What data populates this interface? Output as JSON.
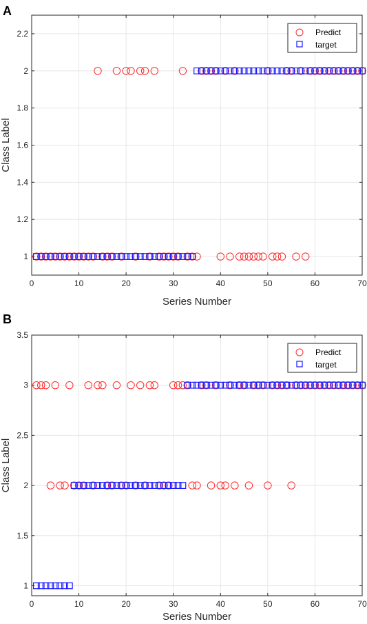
{
  "colors": {
    "predict": "#ff2a2a",
    "target": "#1a1aff",
    "grid": "#e6e6e6",
    "axis": "#262626"
  },
  "chart_data": [
    {
      "type": "scatter",
      "panel_label": "A",
      "xlabel": "Series Number",
      "ylabel": "Class Label",
      "xlim": [
        0,
        70
      ],
      "ylim": [
        0.9,
        2.3
      ],
      "xticks": [
        0,
        10,
        20,
        30,
        40,
        50,
        60,
        70
      ],
      "yticks": [
        1,
        1.2,
        1.4,
        1.6,
        1.8,
        2,
        2.2
      ],
      "ytick_labels": [
        "1",
        "1.2",
        "1.4",
        "1.6",
        "1.8",
        "2",
        "2.2"
      ],
      "grid": true,
      "legend": "top-right",
      "series": [
        {
          "name": "Predict",
          "marker": "circle",
          "points": [
            [
              1,
              1
            ],
            [
              2,
              1
            ],
            [
              3,
              1
            ],
            [
              4,
              1
            ],
            [
              5,
              1
            ],
            [
              6,
              1
            ],
            [
              7,
              1
            ],
            [
              8,
              1
            ],
            [
              9,
              1
            ],
            [
              10,
              1
            ],
            [
              11,
              1
            ],
            [
              12,
              1
            ],
            [
              13,
              1
            ],
            [
              14,
              2
            ],
            [
              15,
              1
            ],
            [
              16,
              1
            ],
            [
              17,
              1
            ],
            [
              18,
              2
            ],
            [
              19,
              1
            ],
            [
              20,
              2
            ],
            [
              21,
              2
            ],
            [
              22,
              1
            ],
            [
              23,
              2
            ],
            [
              24,
              2
            ],
            [
              25,
              1
            ],
            [
              26,
              2
            ],
            [
              27,
              1
            ],
            [
              28,
              1
            ],
            [
              29,
              1
            ],
            [
              30,
              1
            ],
            [
              31,
              1
            ],
            [
              32,
              2
            ],
            [
              33,
              1
            ],
            [
              34,
              1
            ],
            [
              35,
              1
            ],
            [
              36,
              2
            ],
            [
              37,
              2
            ],
            [
              38,
              2
            ],
            [
              39,
              2
            ],
            [
              40,
              1
            ],
            [
              41,
              2
            ],
            [
              42,
              1
            ],
            [
              43,
              2
            ],
            [
              44,
              1
            ],
            [
              45,
              1
            ],
            [
              46,
              1
            ],
            [
              47,
              1
            ],
            [
              48,
              1
            ],
            [
              49,
              1
            ],
            [
              50,
              2
            ],
            [
              51,
              1
            ],
            [
              52,
              1
            ],
            [
              53,
              1
            ],
            [
              54,
              2
            ],
            [
              55,
              2
            ],
            [
              56,
              1
            ],
            [
              57,
              2
            ],
            [
              58,
              1
            ],
            [
              59,
              2
            ],
            [
              60,
              2
            ],
            [
              61,
              2
            ],
            [
              62,
              2
            ],
            [
              63,
              2
            ],
            [
              64,
              2
            ],
            [
              65,
              2
            ],
            [
              66,
              2
            ],
            [
              67,
              2
            ],
            [
              68,
              2
            ],
            [
              69,
              2
            ],
            [
              70,
              2
            ]
          ]
        },
        {
          "name": "target",
          "marker": "square",
          "points": [
            [
              1,
              1
            ],
            [
              2,
              1
            ],
            [
              3,
              1
            ],
            [
              4,
              1
            ],
            [
              5,
              1
            ],
            [
              6,
              1
            ],
            [
              7,
              1
            ],
            [
              8,
              1
            ],
            [
              9,
              1
            ],
            [
              10,
              1
            ],
            [
              11,
              1
            ],
            [
              12,
              1
            ],
            [
              13,
              1
            ],
            [
              14,
              1
            ],
            [
              15,
              1
            ],
            [
              16,
              1
            ],
            [
              17,
              1
            ],
            [
              18,
              1
            ],
            [
              19,
              1
            ],
            [
              20,
              1
            ],
            [
              21,
              1
            ],
            [
              22,
              1
            ],
            [
              23,
              1
            ],
            [
              24,
              1
            ],
            [
              25,
              1
            ],
            [
              26,
              1
            ],
            [
              27,
              1
            ],
            [
              28,
              1
            ],
            [
              29,
              1
            ],
            [
              30,
              1
            ],
            [
              31,
              1
            ],
            [
              32,
              1
            ],
            [
              33,
              1
            ],
            [
              34,
              1
            ],
            [
              35,
              2
            ],
            [
              36,
              2
            ],
            [
              37,
              2
            ],
            [
              38,
              2
            ],
            [
              39,
              2
            ],
            [
              40,
              2
            ],
            [
              41,
              2
            ],
            [
              42,
              2
            ],
            [
              43,
              2
            ],
            [
              44,
              2
            ],
            [
              45,
              2
            ],
            [
              46,
              2
            ],
            [
              47,
              2
            ],
            [
              48,
              2
            ],
            [
              49,
              2
            ],
            [
              50,
              2
            ],
            [
              51,
              2
            ],
            [
              52,
              2
            ],
            [
              53,
              2
            ],
            [
              54,
              2
            ],
            [
              55,
              2
            ],
            [
              56,
              2
            ],
            [
              57,
              2
            ],
            [
              58,
              2
            ],
            [
              59,
              2
            ],
            [
              60,
              2
            ],
            [
              61,
              2
            ],
            [
              62,
              2
            ],
            [
              63,
              2
            ],
            [
              64,
              2
            ],
            [
              65,
              2
            ],
            [
              66,
              2
            ],
            [
              67,
              2
            ],
            [
              68,
              2
            ],
            [
              69,
              2
            ],
            [
              70,
              2
            ]
          ]
        }
      ]
    },
    {
      "type": "scatter",
      "panel_label": "B",
      "xlabel": "Series Number",
      "ylabel": "Class Label",
      "xlim": [
        0,
        70
      ],
      "ylim": [
        0.9,
        3.5
      ],
      "xticks": [
        0,
        10,
        20,
        30,
        40,
        50,
        60,
        70
      ],
      "yticks": [
        1,
        1.5,
        2,
        2.5,
        3,
        3.5
      ],
      "ytick_labels": [
        "1",
        "1.5",
        "2",
        "2.5",
        "3",
        "3.5"
      ],
      "grid": true,
      "legend": "top-right",
      "series": [
        {
          "name": "Predict",
          "marker": "circle",
          "points": [
            [
              1,
              3
            ],
            [
              2,
              3
            ],
            [
              3,
              3
            ],
            [
              4,
              2
            ],
            [
              5,
              3
            ],
            [
              6,
              2
            ],
            [
              7,
              2
            ],
            [
              8,
              3
            ],
            [
              9,
              2
            ],
            [
              10,
              2
            ],
            [
              11,
              2
            ],
            [
              12,
              3
            ],
            [
              13,
              2
            ],
            [
              14,
              3
            ],
            [
              15,
              3
            ],
            [
              16,
              2
            ],
            [
              17,
              2
            ],
            [
              18,
              3
            ],
            [
              19,
              2
            ],
            [
              20,
              2
            ],
            [
              21,
              3
            ],
            [
              22,
              2
            ],
            [
              23,
              3
            ],
            [
              24,
              2
            ],
            [
              25,
              3
            ],
            [
              26,
              3
            ],
            [
              27,
              2
            ],
            [
              28,
              2
            ],
            [
              29,
              2
            ],
            [
              30,
              3
            ],
            [
              31,
              3
            ],
            [
              32,
              3
            ],
            [
              33,
              3
            ],
            [
              34,
              2
            ],
            [
              35,
              2
            ],
            [
              36,
              3
            ],
            [
              37,
              3
            ],
            [
              38,
              2
            ],
            [
              39,
              3
            ],
            [
              40,
              2
            ],
            [
              41,
              2
            ],
            [
              42,
              3
            ],
            [
              43,
              2
            ],
            [
              44,
              3
            ],
            [
              45,
              3
            ],
            [
              46,
              2
            ],
            [
              47,
              3
            ],
            [
              48,
              3
            ],
            [
              49,
              3
            ],
            [
              50,
              2
            ],
            [
              51,
              3
            ],
            [
              52,
              3
            ],
            [
              53,
              3
            ],
            [
              54,
              3
            ],
            [
              55,
              2
            ],
            [
              56,
              3
            ],
            [
              57,
              3
            ],
            [
              58,
              3
            ],
            [
              59,
              3
            ],
            [
              60,
              3
            ],
            [
              61,
              3
            ],
            [
              62,
              3
            ],
            [
              63,
              3
            ],
            [
              64,
              3
            ],
            [
              65,
              3
            ],
            [
              66,
              3
            ],
            [
              67,
              3
            ],
            [
              68,
              3
            ],
            [
              69,
              3
            ],
            [
              70,
              3
            ]
          ]
        },
        {
          "name": "target",
          "marker": "square",
          "points": [
            [
              1,
              1
            ],
            [
              2,
              1
            ],
            [
              3,
              1
            ],
            [
              4,
              1
            ],
            [
              5,
              1
            ],
            [
              6,
              1
            ],
            [
              7,
              1
            ],
            [
              8,
              1
            ],
            [
              9,
              2
            ],
            [
              10,
              2
            ],
            [
              11,
              2
            ],
            [
              12,
              2
            ],
            [
              13,
              2
            ],
            [
              14,
              2
            ],
            [
              15,
              2
            ],
            [
              16,
              2
            ],
            [
              17,
              2
            ],
            [
              18,
              2
            ],
            [
              19,
              2
            ],
            [
              20,
              2
            ],
            [
              21,
              2
            ],
            [
              22,
              2
            ],
            [
              23,
              2
            ],
            [
              24,
              2
            ],
            [
              25,
              2
            ],
            [
              26,
              2
            ],
            [
              27,
              2
            ],
            [
              28,
              2
            ],
            [
              29,
              2
            ],
            [
              30,
              2
            ],
            [
              31,
              2
            ],
            [
              32,
              2
            ],
            [
              33,
              3
            ],
            [
              34,
              3
            ],
            [
              35,
              3
            ],
            [
              36,
              3
            ],
            [
              37,
              3
            ],
            [
              38,
              3
            ],
            [
              39,
              3
            ],
            [
              40,
              3
            ],
            [
              41,
              3
            ],
            [
              42,
              3
            ],
            [
              43,
              3
            ],
            [
              44,
              3
            ],
            [
              45,
              3
            ],
            [
              46,
              3
            ],
            [
              47,
              3
            ],
            [
              48,
              3
            ],
            [
              49,
              3
            ],
            [
              50,
              3
            ],
            [
              51,
              3
            ],
            [
              52,
              3
            ],
            [
              53,
              3
            ],
            [
              54,
              3
            ],
            [
              55,
              3
            ],
            [
              56,
              3
            ],
            [
              57,
              3
            ],
            [
              58,
              3
            ],
            [
              59,
              3
            ],
            [
              60,
              3
            ],
            [
              61,
              3
            ],
            [
              62,
              3
            ],
            [
              63,
              3
            ],
            [
              64,
              3
            ],
            [
              65,
              3
            ],
            [
              66,
              3
            ],
            [
              67,
              3
            ],
            [
              68,
              3
            ],
            [
              69,
              3
            ],
            [
              70,
              3
            ]
          ]
        }
      ]
    }
  ]
}
